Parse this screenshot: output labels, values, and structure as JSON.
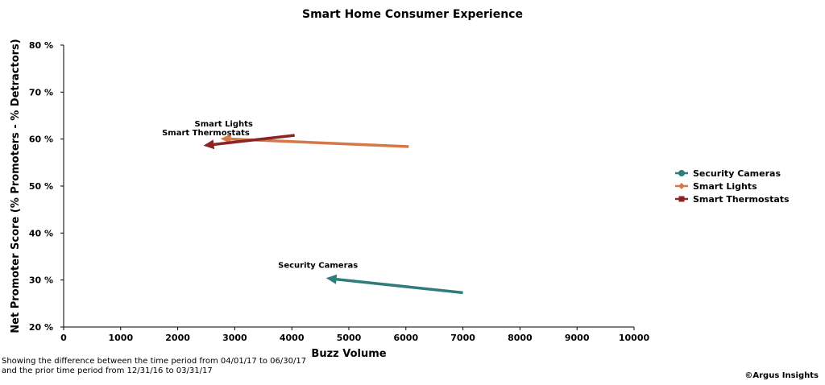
{
  "chart_data": {
    "type": "line",
    "title": "Smart Home Consumer Experience",
    "xlabel": "Buzz Volume",
    "ylabel": "Net Promoter Score (% Promoters - % Detractors)",
    "xlim": [
      0,
      10000
    ],
    "ylim": [
      20,
      80
    ],
    "x_ticks": [
      0,
      1000,
      2000,
      3000,
      4000,
      5000,
      6000,
      7000,
      8000,
      9000,
      10000
    ],
    "y_ticks": [
      20,
      30,
      40,
      50,
      60,
      70,
      80
    ],
    "y_tick_labels": [
      "20 %",
      "30 %",
      "40 %",
      "50 %",
      "60 %",
      "70 %",
      "80 %"
    ],
    "grid": false,
    "legend_position": "right",
    "series": [
      {
        "name": "Security Cameras",
        "color": "#2f7d7a",
        "label": "Security Cameras",
        "from": {
          "x": 7000,
          "y": 27.3
        },
        "to": {
          "x": 4600,
          "y": 30.4
        }
      },
      {
        "name": "Smart Lights",
        "color": "#d4784a",
        "label": "Smart Lights",
        "from": {
          "x": 6050,
          "y": 58.4
        },
        "to": {
          "x": 2750,
          "y": 60.1
        }
      },
      {
        "name": "Smart Thermostats",
        "color": "#8b2424",
        "label": "Smart Thermostats",
        "from": {
          "x": 4050,
          "y": 60.8
        },
        "to": {
          "x": 2450,
          "y": 58.6
        }
      }
    ]
  },
  "footnote": {
    "line1": "Showing the difference between the time period from  04/01/17 to 06/30/17",
    "line2": "and the prior time period from 12/31/16 to 03/31/17"
  },
  "credit": "©Argus Insights"
}
